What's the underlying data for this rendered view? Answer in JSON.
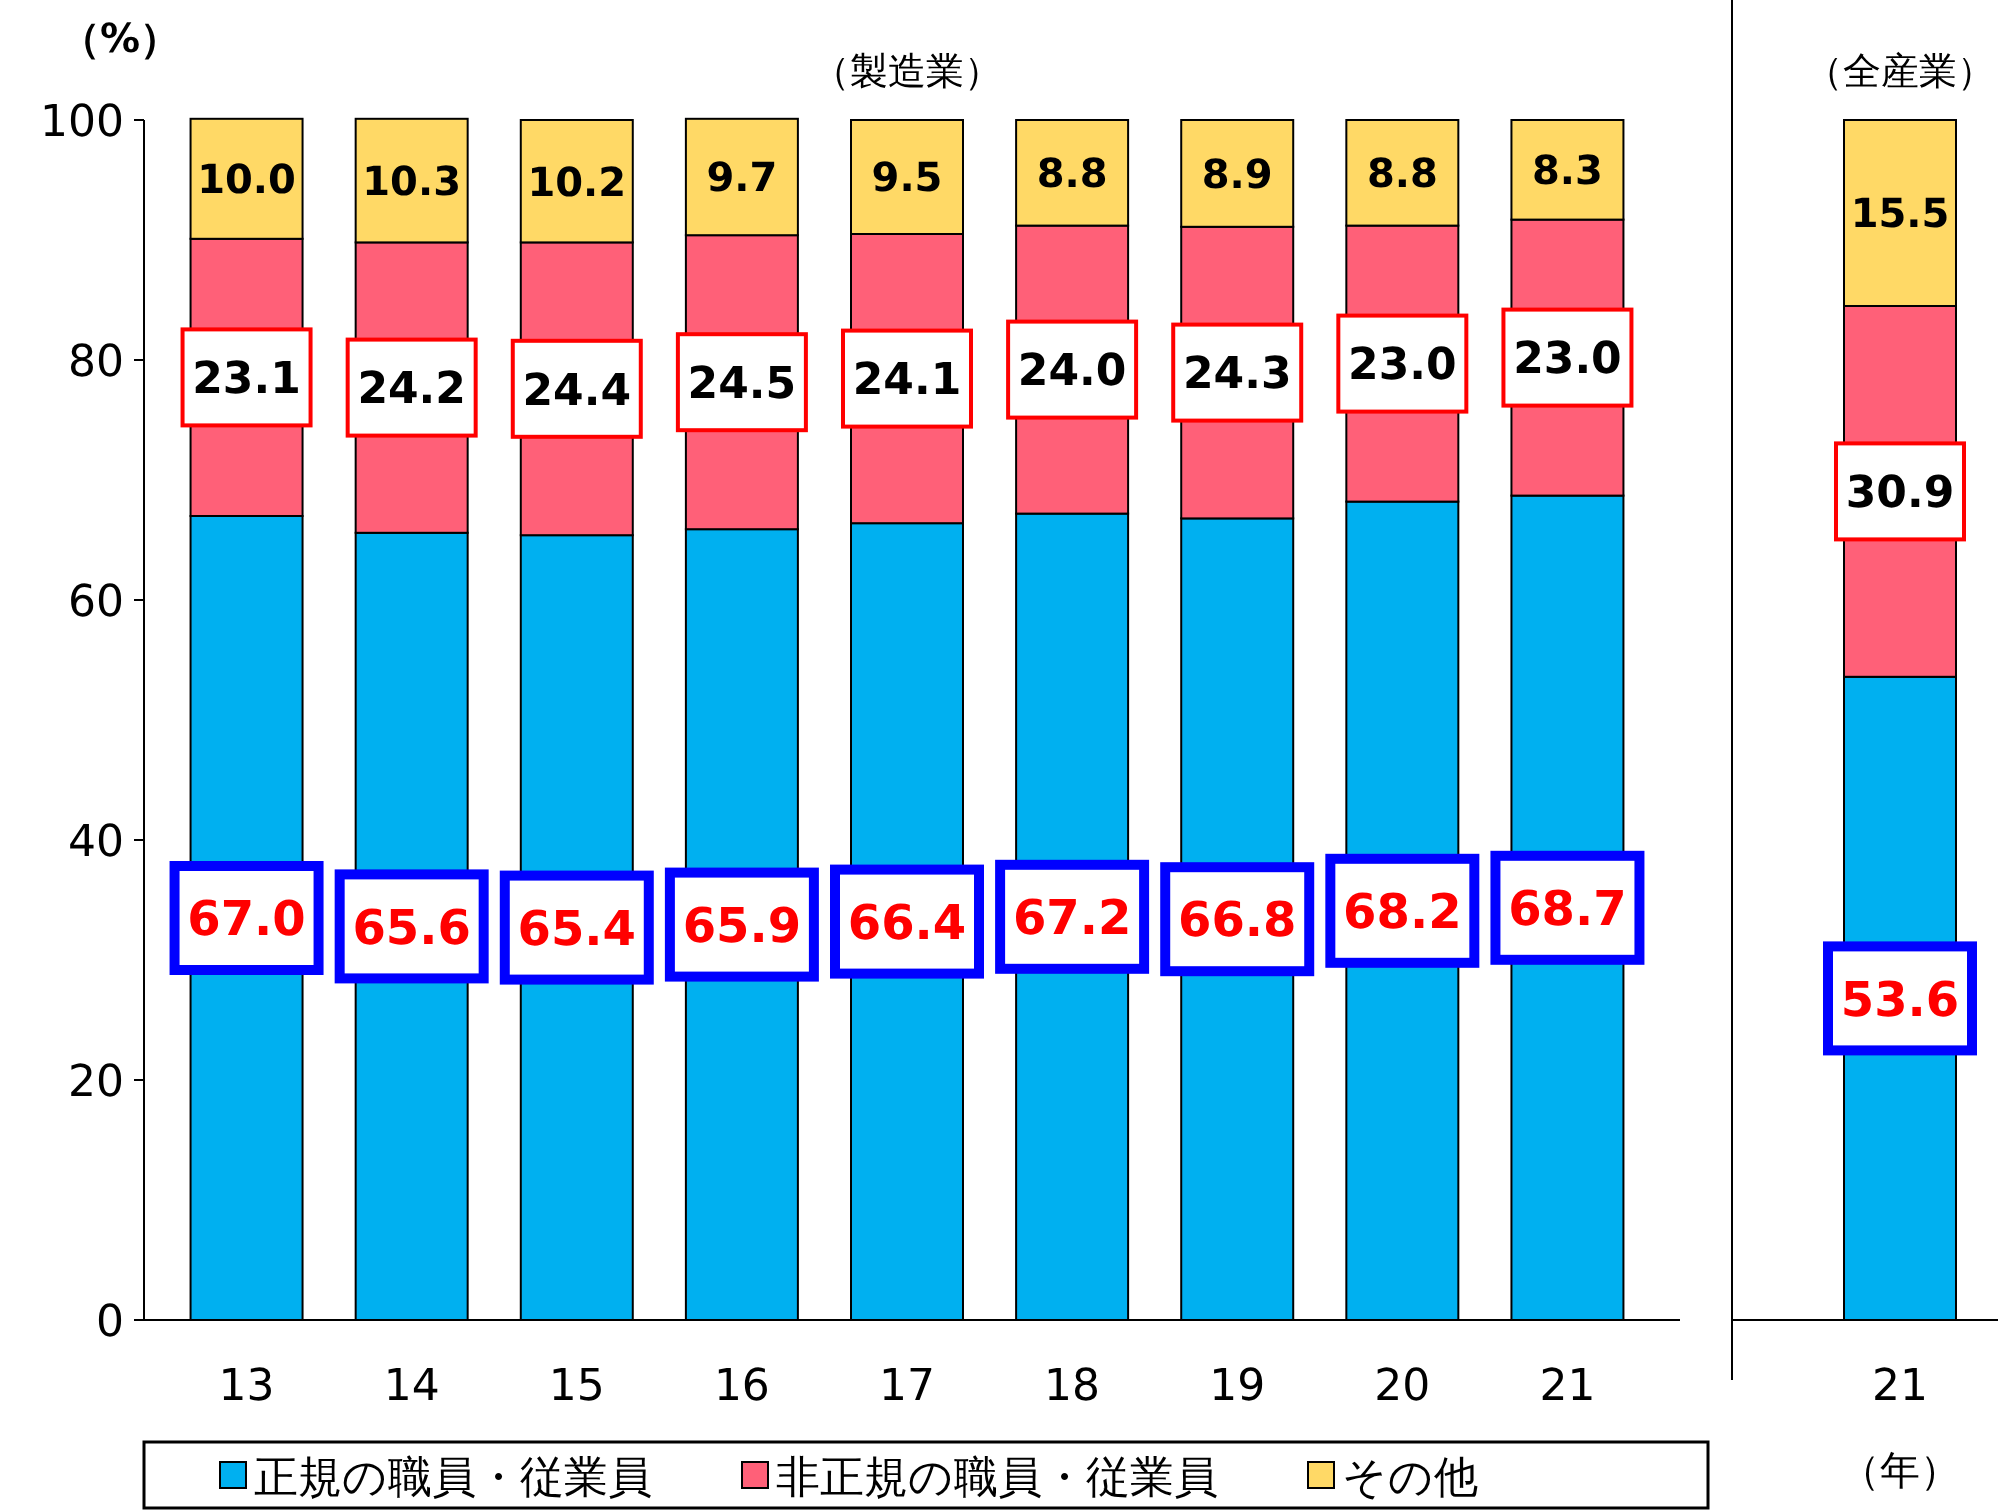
{
  "chart_data": [
    {
      "type": "bar",
      "stacked": true,
      "title": "（製造業）",
      "ylabel": "（%）",
      "categories": [
        "13",
        "14",
        "15",
        "16",
        "17",
        "18",
        "19",
        "20",
        "21"
      ],
      "ylim": [
        0,
        100
      ],
      "yticks": [
        0,
        20,
        40,
        60,
        80,
        100
      ],
      "legend": "bottom",
      "grid": false,
      "series": [
        {
          "name": "正規の職員・従業員",
          "color": "#00b0f0",
          "values": [
            67.0,
            65.6,
            65.4,
            65.9,
            66.4,
            67.2,
            66.8,
            68.2,
            68.7
          ],
          "value_labels": [
            "67.0",
            "65.6",
            "65.4",
            "65.9",
            "66.4",
            "67.2",
            "66.8",
            "68.2",
            "68.7"
          ]
        },
        {
          "name": "非正規の職員・従業員",
          "color": "#ff6078",
          "values": [
            23.1,
            24.2,
            24.4,
            24.5,
            24.1,
            24.0,
            24.3,
            23.0,
            23.0
          ],
          "value_labels": [
            "23.1",
            "24.2",
            "24.4",
            "24.5",
            "24.1",
            "24.0",
            "24.3",
            "23.0",
            "23.0"
          ]
        },
        {
          "name": "その他",
          "color": "#ffd966",
          "values": [
            10.0,
            10.3,
            10.2,
            9.7,
            9.5,
            8.8,
            8.9,
            8.8,
            8.3
          ],
          "value_labels": [
            "10.0",
            "10.3",
            "10.2",
            "9.7",
            "9.5",
            "8.8",
            "8.9",
            "8.8",
            "8.3"
          ]
        }
      ]
    },
    {
      "type": "bar",
      "stacked": true,
      "title": "（全産業）",
      "xlabel": "（年）",
      "categories": [
        "21"
      ],
      "ylim": [
        0,
        100
      ],
      "tick_labels": "x",
      "legend": false,
      "grid": false,
      "series": [
        {
          "color": "#00b0f0",
          "values": [
            53.6
          ],
          "value_labels": [
            "53.6"
          ]
        },
        {
          "color": "#ff6078",
          "values": [
            30.9
          ],
          "value_labels": [
            "30.9"
          ]
        },
        {
          "color": "#ffd966",
          "values": [
            15.5
          ],
          "value_labels": [
            "15.5"
          ]
        }
      ]
    }
  ]
}
